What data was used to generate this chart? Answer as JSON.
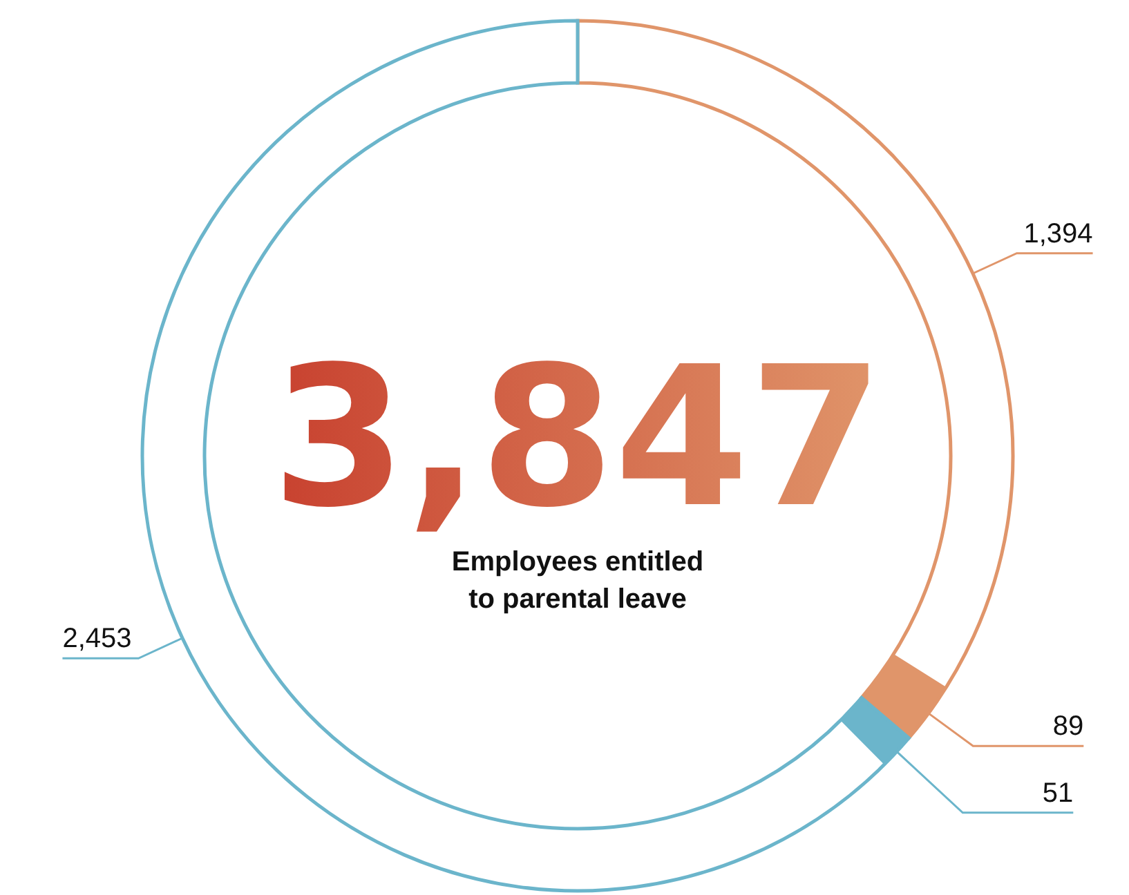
{
  "chart_data": {
    "type": "donut",
    "title": "3,847",
    "subtitle": "Employees entitled to parental leave",
    "categories": [
      null,
      null
    ],
    "values": [
      1394,
      2453
    ],
    "colors": [
      "#e0956a",
      "#6bb5cb"
    ],
    "value_labels": [
      "1,394",
      "2,453"
    ],
    "annotations": [
      "89",
      "51"
    ]
  }
}
